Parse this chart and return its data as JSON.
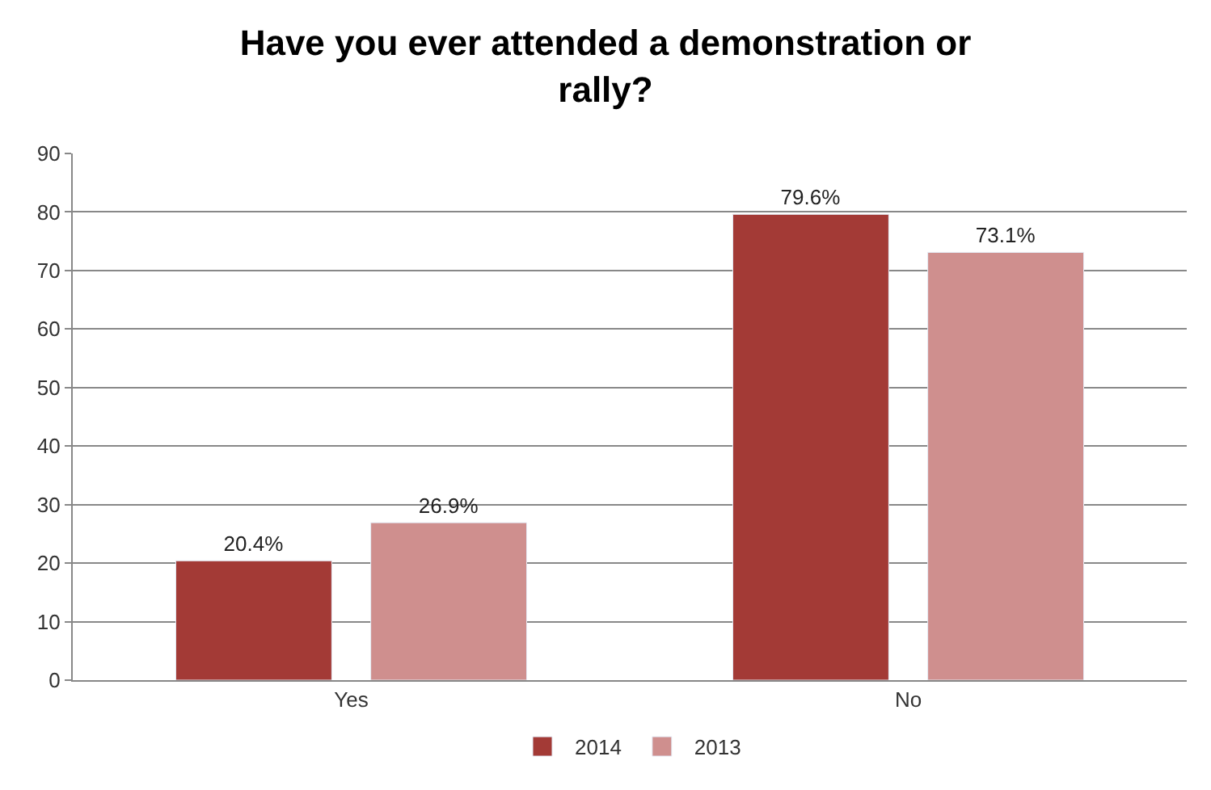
{
  "chart_data": {
    "type": "bar",
    "title": "Have you ever attended a demonstration or rally?",
    "categories": [
      "Yes",
      "No"
    ],
    "series": [
      {
        "name": "2014",
        "color": "#a33a36",
        "values": [
          20.4,
          79.6
        ],
        "value_labels": [
          "20.4%",
          "79.6%"
        ]
      },
      {
        "name": "2013",
        "color": "#cf8f8e",
        "values": [
          26.9,
          73.1
        ],
        "value_labels": [
          "26.9%",
          "73.1%"
        ]
      }
    ],
    "ylim": [
      0,
      90
    ],
    "yticks": [
      0,
      10,
      20,
      30,
      40,
      50,
      60,
      70,
      80,
      90
    ],
    "grid": "y",
    "legend": "bottom"
  }
}
